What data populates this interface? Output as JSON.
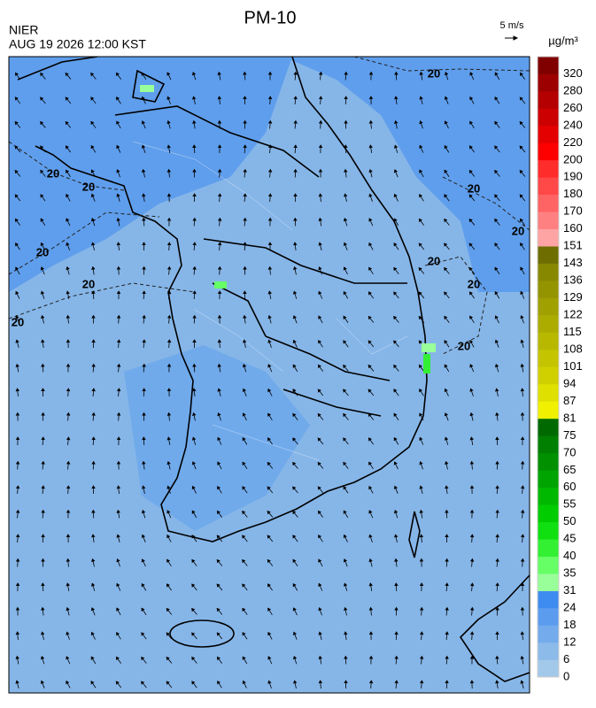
{
  "header": {
    "title": "PM-10",
    "agency": "NIER",
    "datetime": "AUG 19 2026 12:00 KST",
    "wind_scale": "5 m/s",
    "unit": "µg/m³"
  },
  "contour_labels": [
    "20",
    "20",
    "20",
    "20",
    "20",
    "20",
    "20",
    "20",
    "20",
    "20",
    "20"
  ],
  "colorbar": {
    "ticks": [
      "0",
      "6",
      "12",
      "18",
      "24",
      "31",
      "35",
      "40",
      "45",
      "50",
      "55",
      "60",
      "65",
      "70",
      "75",
      "81",
      "87",
      "94",
      "101",
      "108",
      "115",
      "122",
      "129",
      "136",
      "143",
      "151",
      "160",
      "170",
      "180",
      "190",
      "200",
      "220",
      "240",
      "260",
      "280",
      "320"
    ],
    "colors": [
      "#a3c9ea",
      "#8cbbea",
      "#74abec",
      "#5c9cee",
      "#3f8cf0",
      "#99ff99",
      "#66ff66",
      "#33f033",
      "#10e010",
      "#00cc00",
      "#00b800",
      "#00a400",
      "#009000",
      "#007f00",
      "#006a00",
      "#f0f000",
      "#e0e000",
      "#d0d000",
      "#c4c400",
      "#b8b800",
      "#acac00",
      "#a0a000",
      "#949400",
      "#888800",
      "#6e6e00",
      "#ffa4a4",
      "#ff8080",
      "#ff6464",
      "#ff4848",
      "#ff2c2c",
      "#ff0000",
      "#e40000",
      "#cc0000",
      "#b40000",
      "#9c0000",
      "#800000"
    ]
  }
}
